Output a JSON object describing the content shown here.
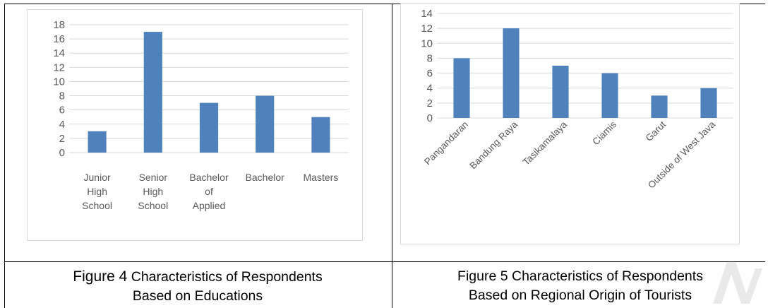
{
  "chart_data": [
    {
      "type": "bar",
      "categories": [
        "Junior High School",
        "Senior High School",
        "Bachelor of Applied",
        "Bachelor",
        "Masters"
      ],
      "category_lines": [
        [
          "Junior",
          "High",
          "School"
        ],
        [
          "Senior",
          "High",
          "School"
        ],
        [
          "Bachelor",
          "of",
          "Applied"
        ],
        [
          "Bachelor"
        ],
        [
          "Masters"
        ]
      ],
      "values": [
        3,
        17,
        7,
        8,
        5
      ],
      "ylim": [
        0,
        18
      ],
      "yticks": [
        0,
        2,
        4,
        6,
        8,
        10,
        12,
        14,
        16,
        18
      ],
      "title": "",
      "xlabel": "",
      "ylabel": "",
      "grid": true,
      "bar_color": "#4f81bd"
    },
    {
      "type": "bar",
      "categories": [
        "Pangandaran",
        "Bandung Raya",
        "Tasikamalaya",
        "Ciamis",
        "Garut",
        "Outside of West Java"
      ],
      "values": [
        8,
        12,
        7,
        6,
        3,
        4
      ],
      "ylim": [
        0,
        14
      ],
      "yticks": [
        0,
        2,
        4,
        6,
        8,
        10,
        12,
        14
      ],
      "title": "",
      "xlabel": "",
      "ylabel": "",
      "grid": true,
      "bar_color": "#4f81bd"
    }
  ],
  "captions": {
    "left_label": "Figure 4",
    "left_rest": " Characteristics of Respondents",
    "left_line2": "Based on Educations",
    "right_line1": "Figure 5 Characteristics of Respondents",
    "right_line2": "Based on Regional Origin of Tourists"
  }
}
